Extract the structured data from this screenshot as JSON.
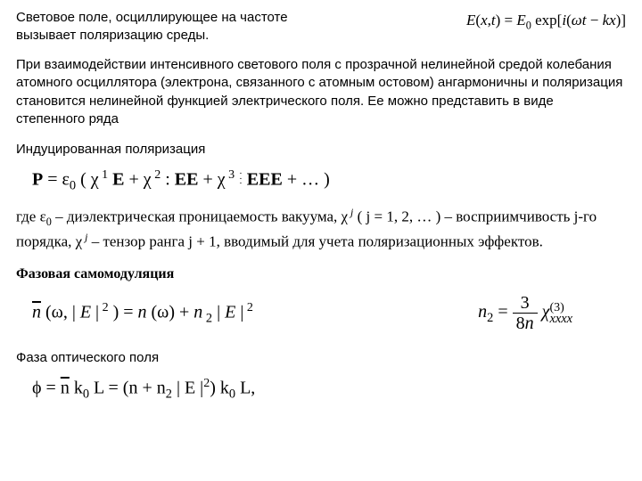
{
  "header": {
    "line1": "Световое поле, осциллирующее на частоте",
    "line2": "вызывает поляризацию среды.",
    "equation_right": "E(x,t) = E₀ exp[i(ωt − kx)]"
  },
  "body": "При взаимодействии интенсивного светового поля с прозрачной нелинейной средой колебания атомного осциллятора (электрона, связанного с атомным остовом) ангармоничны и поляризация становится нелинейной функцией электрического поля. Ее можно представить в виде степенного ряда",
  "induced": {
    "heading": "Индуцированная поляризация",
    "desc_part1": "где  ε",
    "desc_part2": " – диэлектрическая проницаемость вакуума,  χ",
    "desc_part3": "  ( j = 1,  2,  … ) – восприимчивость  j-го порядка,  χ",
    "desc_part4": " – тензор ранга  j + 1,  вводимый для учета поляризационных эффектов."
  },
  "selfmod": {
    "heading": "Фазовая самомодуляция"
  },
  "phase": {
    "heading": "Фаза оптического поля"
  }
}
